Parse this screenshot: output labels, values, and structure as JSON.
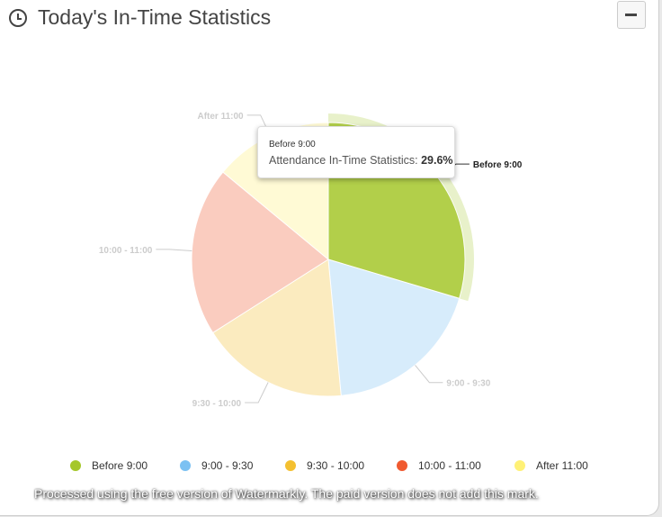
{
  "header": {
    "title": "Today's In-Time Statistics"
  },
  "tooltip": {
    "category": "Before 9:00",
    "series": "Attendance In-Time Statistics: ",
    "value": "29.6%"
  },
  "watermark": "Processed using the free version of Watermarkly. The paid version does not add this mark.",
  "chart_data": {
    "type": "pie",
    "series_name": "Attendance In-Time Statistics",
    "categories": [
      "Before 9:00",
      "9:00 - 9:30",
      "9:30 - 10:00",
      "10:00 - 11:00",
      "After 11:00"
    ],
    "values": [
      29.6,
      18.9,
      17.5,
      20,
      14
    ],
    "colors": [
      "#a5c72b",
      "#7cc1f2",
      "#f4c030",
      "#f05a30",
      "#fff176"
    ],
    "highlighted": "Before 9:00"
  }
}
